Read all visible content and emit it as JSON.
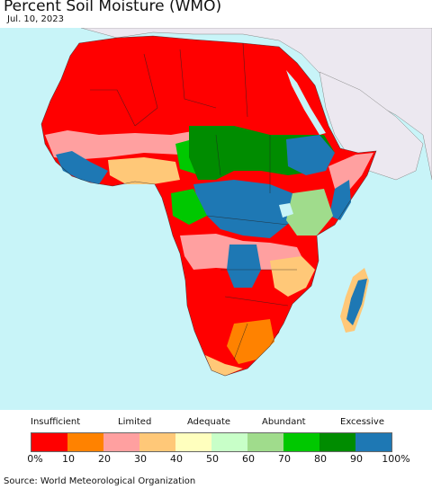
{
  "title": "Percent Soil Moisture (WMO)",
  "date": "Jul. 10, 2023",
  "colors": {
    "ocean": "#c8f4f8",
    "land_outside": "#ece8f0",
    "dry": "#ff0000",
    "orange": "#ff8200",
    "pink": "#ffa0a0",
    "tan": "#ffc878",
    "yellow": "#ffffbe",
    "lightgreen": "#c8ffc8",
    "sage": "#a0dc8c",
    "green": "#00c800",
    "darkgreen": "#008c00",
    "blue": "#1e78b4"
  },
  "legend": {
    "categories": [
      "Insufficient",
      "Limited",
      "Adequate",
      "Abundant",
      "Excessive"
    ],
    "ticks": [
      "0%",
      "10",
      "20",
      "30",
      "40",
      "50",
      "60",
      "70",
      "80",
      "90",
      "100%"
    ],
    "bins": [
      "#ff0000",
      "#ff8200",
      "#ffa0a0",
      "#ffc878",
      "#ffffbe",
      "#c8ffc8",
      "#a0dc8c",
      "#00c800",
      "#008c00",
      "#1e78b4"
    ]
  },
  "source": "Source: World Meteorological Organization"
}
